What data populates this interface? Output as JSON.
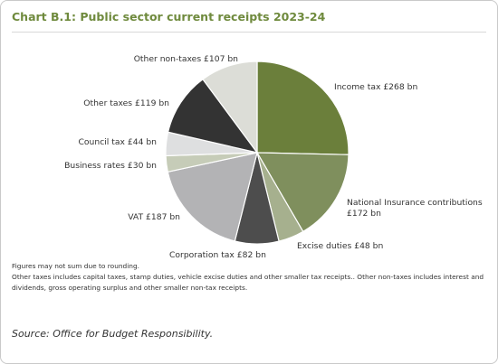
{
  "chart_data": {
    "type": "pie",
    "title": "Chart B.1: Public sector current receipts 2023-24",
    "categories": [
      "Income tax",
      "National Insurance contributions",
      "Excise duties",
      "Corporation tax",
      "VAT",
      "Business rates",
      "Council tax",
      "Other taxes",
      "Other non-taxes"
    ],
    "values": [
      268,
      172,
      48,
      82,
      187,
      30,
      44,
      119,
      107
    ],
    "value_labels": [
      "£268 bn",
      "£172 bn",
      "£48 bn",
      "£82 bn",
      "£187 bn",
      "£30 bn",
      "£44 bn",
      "£119 bn",
      "£107 bn"
    ],
    "colors": [
      "#6b7f3b",
      "#7f8f5d",
      "#a6b08e",
      "#4d4d4d",
      "#b3b3b5",
      "#c6ccb8",
      "#dedfe0",
      "#333333",
      "#dcddd7"
    ],
    "notes": [
      "Figures may not sum due to rounding.",
      "Other taxes includes capital taxes, stamp duties, vehicle excise duties and other smaller tax receipts.. Other non-taxes includes interest and dividends, gross operating surplus and other smaller non-tax receipts."
    ],
    "source": "Source: Office for Budget Responsibility."
  }
}
